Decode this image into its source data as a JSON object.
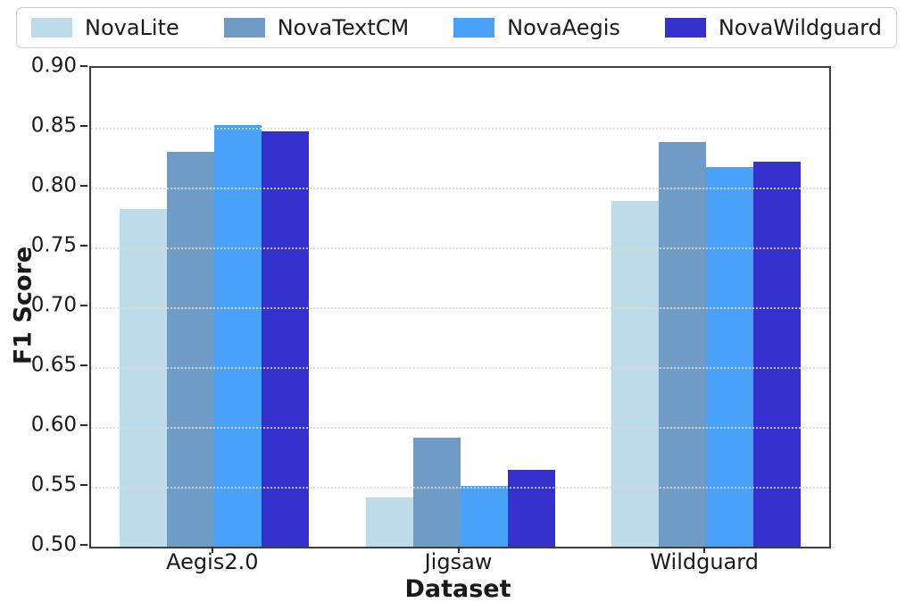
{
  "figure": {
    "background": "#ffffff"
  },
  "chart_data": {
    "type": "bar",
    "title": "",
    "xlabel": "Dataset",
    "ylabel": "F1 Score",
    "categories": [
      "Aegis2.0",
      "Jigsaw",
      "Wildguard"
    ],
    "series": [
      {
        "name": "NovaLite",
        "color": "#bfdceb",
        "values": [
          0.782,
          0.541,
          0.789
        ]
      },
      {
        "name": "NovaTextCM",
        "color": "#6f9bc4",
        "values": [
          0.83,
          0.591,
          0.838
        ]
      },
      {
        "name": "NovaAegis",
        "color": "#49a1f8",
        "values": [
          0.852,
          0.551,
          0.817
        ]
      },
      {
        "name": "NovaWildguard",
        "color": "#3431cf",
        "values": [
          0.847,
          0.564,
          0.822
        ]
      }
    ],
    "ylim": [
      0.5,
      0.9
    ],
    "y_ticks": [
      0.5,
      0.55,
      0.6,
      0.65,
      0.7,
      0.75,
      0.8,
      0.85,
      0.9
    ],
    "y_tick_decimals": 2,
    "grid": true,
    "legend_position": "top"
  }
}
